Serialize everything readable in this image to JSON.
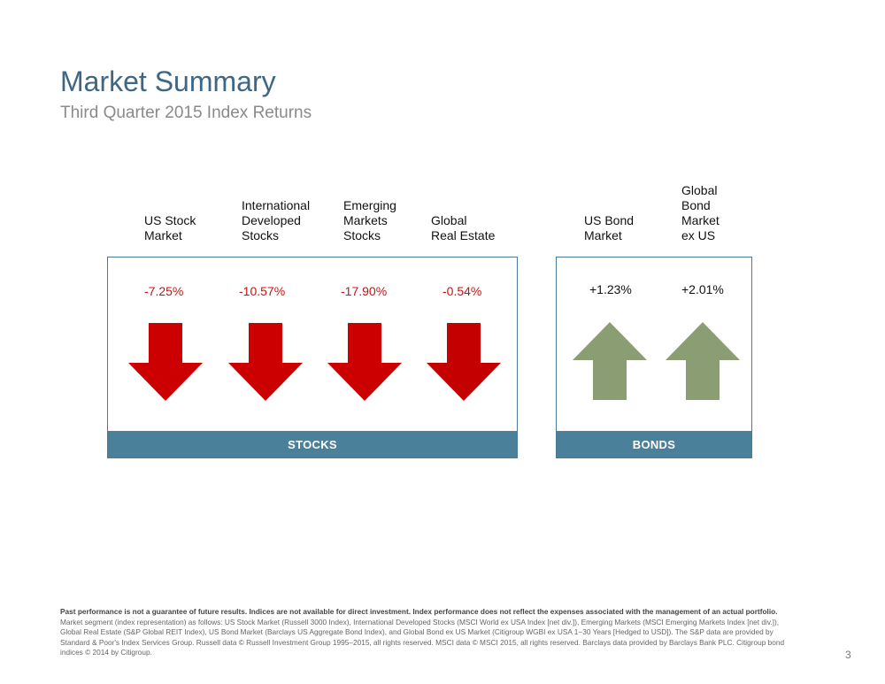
{
  "header": {
    "title": "Market Summary",
    "subtitle": "Third Quarter 2015 Index Returns"
  },
  "stocks": {
    "footer_label": "STOCKS",
    "items": [
      {
        "label": "US Stock\nMarket",
        "return": "-7.25%",
        "direction": "down"
      },
      {
        "label": "International\nDeveloped\nStocks",
        "return": "-10.57%",
        "direction": "down"
      },
      {
        "label": "Emerging\nMarkets\nStocks",
        "return": "-17.90%",
        "direction": "down"
      },
      {
        "label": "Global\nReal Estate",
        "return": "-0.54%",
        "direction": "down"
      }
    ]
  },
  "bonds": {
    "footer_label": "BONDS",
    "items": [
      {
        "label": "US Bond\nMarket",
        "return": "+1.23%",
        "direction": "up"
      },
      {
        "label": "Global\nBond\nMarket\nex US",
        "return": "+2.01%",
        "direction": "up"
      }
    ]
  },
  "colors": {
    "down_arrow": "#cc0000",
    "up_arrow": "#8b9e73",
    "panel_footer": "#4a8099",
    "title": "#3f6783"
  },
  "footnote": {
    "bold": "Past performance is not a guarantee of future results. Indices are not available for direct investment. Index performance does not reflect the expenses associated with the management of an actual portfolio.",
    "body": "Market segment (index representation) as follows: US Stock Market (Russell 3000 Index), International Developed Stocks (MSCI World ex USA Index [net div.]), Emerging Markets (MSCI Emerging Markets Index [net div.]), Global Real Estate (S&P Global REIT Index), US Bond Market (Barclays US Aggregate Bond Index), and Global Bond ex US Market (Citigroup WGBI ex USA 1−30 Years [Hedged to USD]). The S&P data are provided by Standard & Poor's Index Services Group. Russell data © Russell Investment Group 1995–2015, all rights reserved. MSCI data © MSCI 2015, all rights reserved. Barclays data provided by Barclays Bank PLC. Citigroup bond indices © 2014 by Citigroup."
  },
  "page_number": "3"
}
